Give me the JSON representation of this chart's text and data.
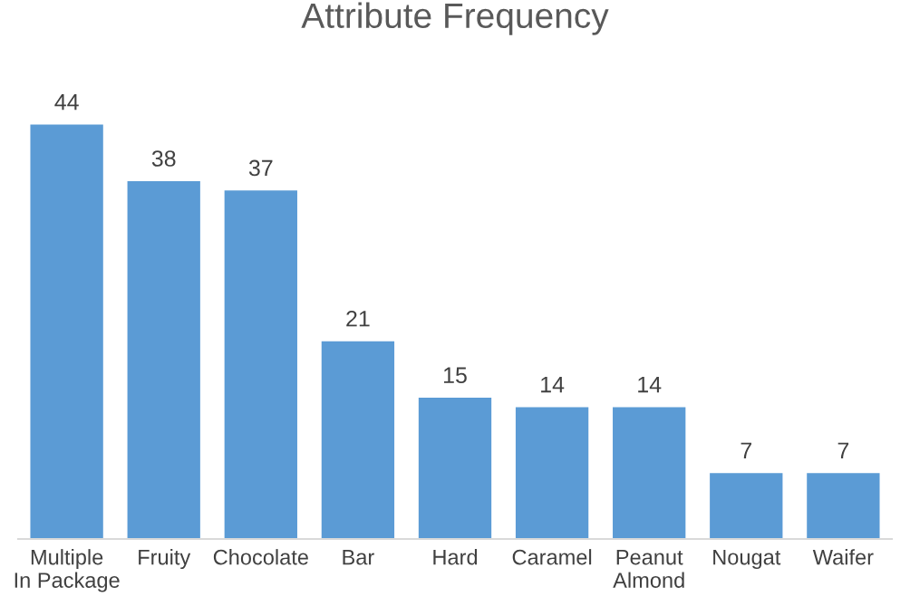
{
  "chart_data": {
    "type": "bar",
    "title": "Attribute Frequency",
    "categories": [
      "Multiple\nIn Package",
      "Fruity",
      "Chocolate",
      "Bar",
      "Hard",
      "Caramel",
      "Peanut\nAlmond",
      "Nougat",
      "Waifer"
    ],
    "values": [
      44,
      38,
      37,
      21,
      15,
      14,
      14,
      7,
      7
    ],
    "color": "#5b9bd5",
    "data_labels": true,
    "grid": false,
    "legend": false,
    "tick_labels": "x"
  }
}
